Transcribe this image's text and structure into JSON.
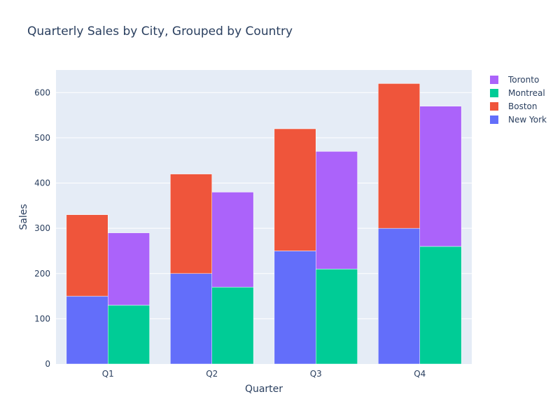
{
  "chart_data": {
    "type": "bar",
    "barmode": "stacked-grouped",
    "title": "Quarterly Sales by City, Grouped by Country",
    "xlabel": "Quarter",
    "ylabel": "Sales",
    "categories": [
      "Q1",
      "Q2",
      "Q3",
      "Q4"
    ],
    "ylim": [
      0,
      650
    ],
    "yticks": [
      0,
      100,
      200,
      300,
      400,
      500,
      600
    ],
    "grid": true,
    "legend_position": "top-right",
    "groups": [
      {
        "stack": "US",
        "series": [
          "New York",
          "Boston"
        ]
      },
      {
        "stack": "Canada",
        "series": [
          "Montreal",
          "Toronto"
        ]
      }
    ],
    "series": [
      {
        "name": "New York",
        "stack": "US",
        "color": "#636efa",
        "values": [
          150,
          200,
          250,
          300
        ]
      },
      {
        "name": "Boston",
        "stack": "US",
        "color": "#ef553b",
        "values": [
          180,
          220,
          270,
          320
        ]
      },
      {
        "name": "Montreal",
        "stack": "Canada",
        "color": "#00cc96",
        "values": [
          130,
          170,
          210,
          260
        ]
      },
      {
        "name": "Toronto",
        "stack": "Canada",
        "color": "#ab63fa",
        "values": [
          160,
          210,
          260,
          310
        ]
      }
    ],
    "legend_order": [
      "Toronto",
      "Montreal",
      "Boston",
      "New York"
    ],
    "colors": {
      "plot_bg": "#e5ecf6",
      "grid": "#ffffff",
      "text": "#2a3f5f"
    }
  }
}
